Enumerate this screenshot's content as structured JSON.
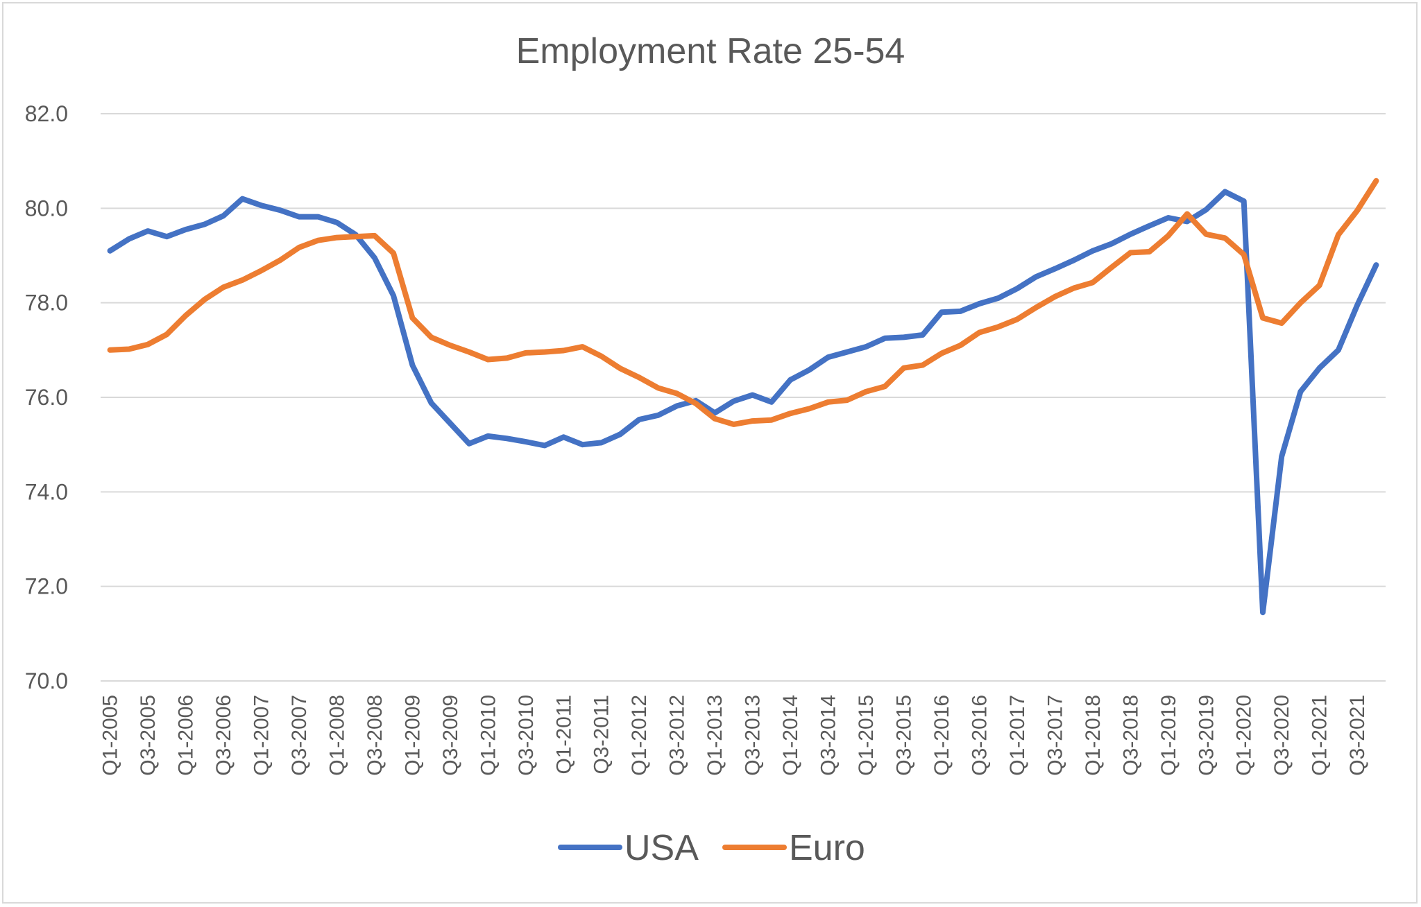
{
  "chart_data": {
    "type": "line",
    "title": "Employment Rate 25-54",
    "xlabel": "",
    "ylabel": "",
    "ylim": [
      70,
      82
    ],
    "yticks": [
      "70.0",
      "72.0",
      "74.0",
      "76.0",
      "78.0",
      "80.0",
      "82.0"
    ],
    "grid": true,
    "legend_position": "bottom",
    "categories": [
      "Q1-2005",
      "Q2-2005",
      "Q3-2005",
      "Q4-2005",
      "Q1-2006",
      "Q2-2006",
      "Q3-2006",
      "Q4-2006",
      "Q1-2007",
      "Q2-2007",
      "Q3-2007",
      "Q4-2007",
      "Q1-2008",
      "Q2-2008",
      "Q3-2008",
      "Q4-2008",
      "Q1-2009",
      "Q2-2009",
      "Q3-2009",
      "Q4-2009",
      "Q1-2010",
      "Q2-2010",
      "Q3-2010",
      "Q4-2010",
      "Q1-2011",
      "Q2-2011",
      "Q3-2011",
      "Q4-2011",
      "Q1-2012",
      "Q2-2012",
      "Q3-2012",
      "Q4-2012",
      "Q1-2013",
      "Q2-2013",
      "Q3-2013",
      "Q4-2013",
      "Q1-2014",
      "Q2-2014",
      "Q3-2014",
      "Q4-2014",
      "Q1-2015",
      "Q2-2015",
      "Q3-2015",
      "Q4-2015",
      "Q1-2016",
      "Q2-2016",
      "Q3-2016",
      "Q4-2016",
      "Q1-2017",
      "Q2-2017",
      "Q3-2017",
      "Q4-2017",
      "Q1-2018",
      "Q2-2018",
      "Q3-2018",
      "Q4-2018",
      "Q1-2019",
      "Q2-2019",
      "Q3-2019",
      "Q4-2019",
      "Q1-2020",
      "Q2-2020",
      "Q3-2020",
      "Q4-2020",
      "Q1-2021",
      "Q2-2021",
      "Q3-2021",
      "Q4-2021"
    ],
    "tick_labels": [
      "Q1-2005",
      "Q3-2005",
      "Q1-2006",
      "Q3-2006",
      "Q1-2007",
      "Q3-2007",
      "Q1-2008",
      "Q3-2008",
      "Q1-2009",
      "Q3-2009",
      "Q1-2010",
      "Q3-2010",
      "Q1-2011",
      "Q3-2011",
      "Q1-2012",
      "Q3-2012",
      "Q1-2013",
      "Q3-2013",
      "Q1-2014",
      "Q3-2014",
      "Q1-2015",
      "Q3-2015",
      "Q1-2016",
      "Q3-2016",
      "Q1-2017",
      "Q3-2017",
      "Q1-2018",
      "Q3-2018",
      "Q1-2019",
      "Q3-2019",
      "Q1-2020",
      "Q3-2020",
      "Q1-2021",
      "Q3-2021"
    ],
    "series": [
      {
        "name": "USA",
        "color": "#4472c4",
        "values": [
          79.1,
          79.35,
          79.52,
          79.4,
          79.55,
          79.66,
          79.84,
          80.2,
          80.06,
          79.96,
          79.82,
          79.82,
          79.7,
          79.44,
          78.95,
          78.15,
          76.68,
          75.88,
          75.45,
          75.02,
          75.18,
          75.13,
          75.06,
          74.98,
          75.16,
          75.0,
          75.04,
          75.22,
          75.53,
          75.62,
          75.82,
          75.93,
          75.67,
          75.92,
          76.05,
          75.9,
          76.37,
          76.58,
          76.85,
          76.96,
          77.07,
          77.25,
          77.27,
          77.32,
          77.8,
          77.82,
          77.98,
          78.1,
          78.3,
          78.55,
          78.72,
          78.9,
          79.1,
          79.25,
          79.45,
          79.63,
          79.8,
          79.72,
          79.97,
          80.35,
          80.15,
          71.45,
          74.75,
          76.12,
          76.62,
          77.0,
          77.95,
          78.8
        ]
      },
      {
        "name": "Euro",
        "color": "#ed7d31",
        "values": [
          77.0,
          77.02,
          77.12,
          77.33,
          77.73,
          78.07,
          78.33,
          78.48,
          78.68,
          78.9,
          79.17,
          79.32,
          79.38,
          79.4,
          79.42,
          79.05,
          77.68,
          77.27,
          77.1,
          76.96,
          76.8,
          76.83,
          76.94,
          76.96,
          76.99,
          77.07,
          76.87,
          76.61,
          76.42,
          76.2,
          76.08,
          75.87,
          75.55,
          75.43,
          75.5,
          75.52,
          75.66,
          75.76,
          75.9,
          75.94,
          76.12,
          76.23,
          76.62,
          76.68,
          76.93,
          77.1,
          77.37,
          77.49,
          77.65,
          77.9,
          78.13,
          78.31,
          78.43,
          78.75,
          79.06,
          79.08,
          79.42,
          79.88,
          79.45,
          79.37,
          79.02,
          77.68,
          77.57,
          78.0,
          78.37,
          79.44,
          79.95,
          80.58
        ]
      }
    ]
  }
}
